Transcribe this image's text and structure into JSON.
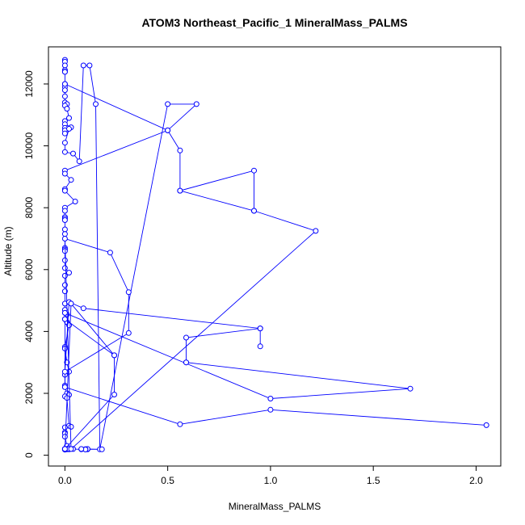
{
  "chart_data": {
    "type": "line",
    "title": "ATOM3 Northeast_Pacific_1 MineralMass_PALMS",
    "xlabel": "MineralMass_PALMS",
    "ylabel": "Altitude (m)",
    "xlim": [
      -0.08,
      2.12
    ],
    "ylim": [
      -350,
      13200
    ],
    "xticks": [
      0,
      0.5,
      1.0,
      1.5,
      2.0
    ],
    "xtick_labels": [
      "0.0",
      "0.5",
      "1.0",
      "1.5",
      "2.0"
    ],
    "yticks": [
      0,
      2000,
      4000,
      6000,
      8000,
      10000,
      12000
    ],
    "ytick_labels": [
      "0",
      "2000",
      "4000",
      "6000",
      "8000",
      "10000",
      "12000"
    ],
    "grid": false,
    "series_color": "#0000ff",
    "series": [
      {
        "x": [
          0.0,
          0.0,
          0.0,
          0.0,
          0.0,
          0.0,
          0.0,
          0.0,
          0.0,
          0.0,
          0.0,
          0.01,
          0.0,
          0.01,
          0.02,
          0.0,
          0.0,
          0.03,
          0.0,
          0.0,
          0.0,
          0.02,
          0.0,
          0.0,
          0.04,
          0.07,
          0.09,
          0.12,
          0.15,
          0.17,
          0.5,
          0.64,
          0.5,
          0.0,
          0.0,
          0.03,
          0.0,
          0.0,
          0.05,
          0.0,
          0.0,
          0.0,
          0.0,
          0.0,
          0.0,
          0.0,
          0.0,
          0.0,
          0.0,
          0.0,
          0.0,
          0.02,
          0.0,
          0.0,
          0.0,
          0.0,
          0.0,
          0.0,
          0.01,
          0.0,
          0.01,
          0.02,
          0.0,
          0.0,
          0.01,
          0.02,
          0.0,
          0.0,
          0.0,
          0.01,
          0.02,
          0.0,
          0.01,
          0.02,
          0.03,
          0.0,
          0.0,
          0.0,
          0.0,
          0.01,
          0.01,
          0.01,
          0.02,
          0.0,
          0.0,
          0.0,
          0.0,
          0.04,
          0.02,
          0.08,
          0.11,
          0.18,
          0.11,
          0.1,
          0.1,
          0.08
        ],
        "y": [
          12780,
          12720,
          12600,
          12450,
          12400,
          12390,
          12000,
          11900,
          11800,
          11600,
          11400,
          11350,
          11300,
          11200,
          10900,
          10800,
          10700,
          10600,
          10580,
          10500,
          10400,
          10550,
          10100,
          9800,
          9750,
          9500,
          12600,
          12600,
          11350,
          190,
          11350,
          11350,
          10500,
          9200,
          9100,
          8900,
          8600,
          8550,
          8200,
          8000,
          7900,
          7700,
          7650,
          7600,
          7300,
          7150,
          6700,
          6650,
          6600,
          6300,
          6050,
          5900,
          5800,
          5500,
          5300,
          4900,
          4700,
          4600,
          4550,
          4400,
          4300,
          4200,
          3500,
          3450,
          3000,
          2700,
          2600,
          2250,
          2200,
          2000,
          1950,
          1900,
          1850,
          950,
          920,
          900,
          740,
          700,
          600,
          300,
          200,
          190,
          190,
          190,
          180,
          200,
          210,
          200,
          200,
          190,
          190,
          190,
          200,
          195,
          185,
          200
        ]
      },
      {
        "x": [
          0.0,
          0.5,
          0.56,
          0.56,
          0.92,
          0.92,
          0.56,
          0.92,
          1.22,
          0.03,
          0.0,
          0.22,
          0.31,
          0.31,
          0.0,
          0.02,
          0.09,
          0.95,
          0.95,
          0.95,
          0.59,
          0.59,
          0.59,
          1.68,
          1.0,
          0.0,
          0.0,
          0.56,
          1.0,
          2.05
        ],
        "y": [
          12000,
          10500,
          9850,
          8550,
          9200,
          7900,
          8550,
          7900,
          7250,
          200,
          7000,
          6550,
          5270,
          3950,
          2700,
          4950,
          4750,
          4100,
          3520,
          4100,
          3800,
          3000,
          3000,
          2150,
          1830,
          4600,
          2200,
          1000,
          1470,
          970
        ]
      },
      {
        "x": [
          0.0,
          0.24,
          0.24,
          0.0,
          0.03,
          0.24
        ],
        "y": [
          4400,
          3230,
          1960,
          200,
          4900,
          3230
        ]
      }
    ]
  }
}
